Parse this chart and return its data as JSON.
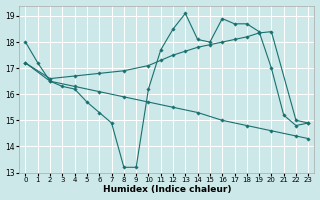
{
  "xlabel": "Humidex (Indice chaleur)",
  "bg_color": "#cce8e8",
  "grid_color": "#ffffff",
  "line_color": "#1a7070",
  "xlim": [
    -0.5,
    23.5
  ],
  "ylim": [
    13,
    19.4
  ],
  "xticks": [
    0,
    1,
    2,
    3,
    4,
    5,
    6,
    7,
    8,
    9,
    10,
    11,
    12,
    13,
    14,
    15,
    16,
    17,
    18,
    19,
    20,
    21,
    22,
    23
  ],
  "yticks": [
    13,
    14,
    15,
    16,
    17,
    18,
    19
  ],
  "series": [
    {
      "x": [
        0,
        1,
        2,
        3,
        4,
        5,
        6,
        7,
        8,
        9,
        10,
        11,
        12,
        13,
        14,
        15,
        16,
        17,
        18,
        19,
        20,
        21,
        22,
        23
      ],
      "y": [
        18.0,
        17.2,
        16.5,
        16.3,
        16.2,
        15.7,
        15.3,
        14.9,
        13.2,
        13.2,
        16.2,
        17.7,
        18.5,
        19.1,
        18.1,
        18.0,
        18.9,
        18.7,
        18.7,
        18.4,
        17.0,
        15.2,
        14.8,
        14.9
      ]
    },
    {
      "x": [
        0,
        2,
        4,
        6,
        8,
        10,
        11,
        12,
        13,
        14,
        15,
        16,
        17,
        18,
        19,
        20,
        22,
        23
      ],
      "y": [
        17.2,
        16.6,
        16.7,
        16.8,
        16.9,
        17.1,
        17.3,
        17.5,
        17.65,
        17.8,
        17.9,
        18.0,
        18.1,
        18.2,
        18.35,
        18.4,
        15.0,
        14.9
      ]
    },
    {
      "x": [
        0,
        2,
        4,
        6,
        8,
        10,
        12,
        14,
        16,
        18,
        20,
        22,
        23
      ],
      "y": [
        17.2,
        16.5,
        16.3,
        16.1,
        15.9,
        15.7,
        15.5,
        15.3,
        15.0,
        14.8,
        14.6,
        14.4,
        14.3
      ]
    }
  ]
}
